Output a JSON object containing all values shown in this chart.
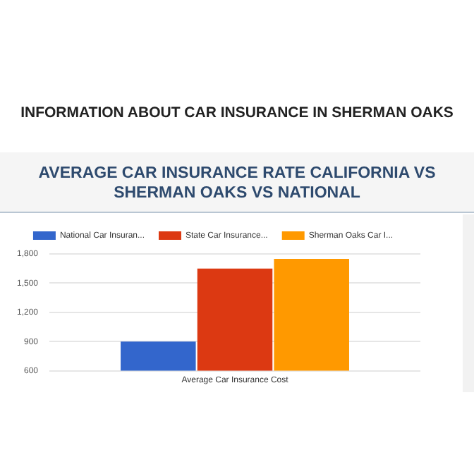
{
  "chart_data": {
    "type": "bar",
    "title": "INFORMATION ABOUT CAR INSURANCE IN SHERMAN OAKS",
    "subtitle": "AVERAGE CAR INSURANCE RATE CALIFORNIA VS SHERMAN OAKS VS NATIONAL",
    "categories": [
      "Average Car Insurance Cost"
    ],
    "series": [
      {
        "name": "National Car Insuran...",
        "color": "#3366cc",
        "values": [
          900
        ]
      },
      {
        "name": "State Car Insurance...",
        "color": "#dc3912",
        "values": [
          1650
        ]
      },
      {
        "name": "Sherman Oaks Car I...",
        "color": "#ff9900",
        "values": [
          1750
        ]
      }
    ],
    "ylim": [
      600,
      1800
    ],
    "yticks": [
      {
        "value": 600,
        "label": "600"
      },
      {
        "value": 900,
        "label": "900"
      },
      {
        "value": 1200,
        "label": "1,200"
      },
      {
        "value": 1500,
        "label": "1,500"
      },
      {
        "value": 1800,
        "label": "1,800"
      }
    ],
    "grid": "y",
    "legend": "top"
  }
}
